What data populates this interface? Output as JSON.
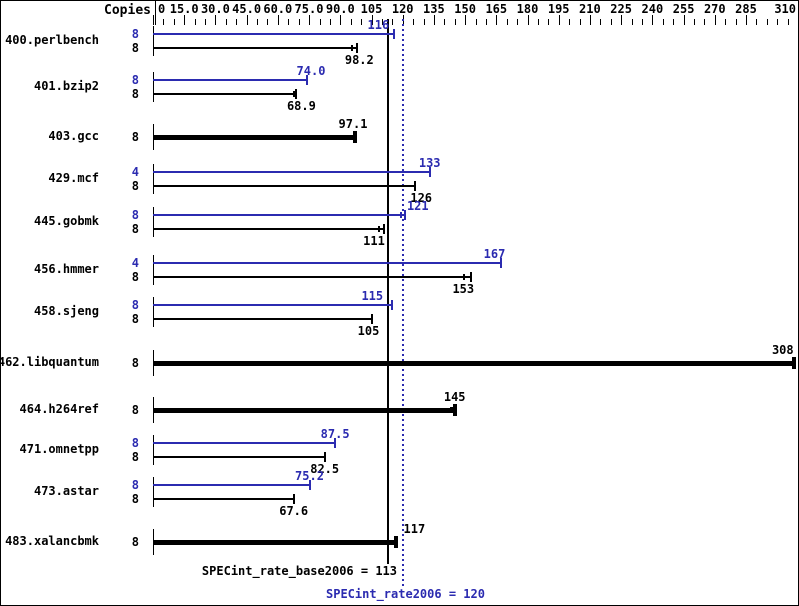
{
  "header": {
    "copies_label": "Copies"
  },
  "footer": {
    "base_result": "SPECint_rate_base2006 = 113",
    "peak_result": "SPECint_rate2006 = 120"
  },
  "chart_data": {
    "type": "bar",
    "orientation": "horizontal",
    "title": "",
    "xlabel": "",
    "ylabel": "Copies",
    "xlim": [
      0,
      310
    ],
    "grid": false,
    "legend": "none",
    "colors": {
      "peak": "#2b2bb0",
      "base": "#000000"
    },
    "axis": {
      "min": 0,
      "max": 310,
      "major_step": 15,
      "minor_step": 5,
      "majors_until": 285,
      "ticks": [
        {
          "v": 0,
          "label": "0"
        },
        {
          "v": 15,
          "label": "15.0"
        },
        {
          "v": 30,
          "label": "30.0"
        },
        {
          "v": 45,
          "label": "45.0"
        },
        {
          "v": 60,
          "label": "60.0"
        },
        {
          "v": 75,
          "label": "75.0"
        },
        {
          "v": 90,
          "label": "90.0"
        },
        {
          "v": 105,
          "label": "105"
        },
        {
          "v": 120,
          "label": "120"
        },
        {
          "v": 135,
          "label": "135"
        },
        {
          "v": 150,
          "label": "150"
        },
        {
          "v": 165,
          "label": "165"
        },
        {
          "v": 180,
          "label": "180"
        },
        {
          "v": 195,
          "label": "195"
        },
        {
          "v": 210,
          "label": "210"
        },
        {
          "v": 225,
          "label": "225"
        },
        {
          "v": 240,
          "label": "240"
        },
        {
          "v": 255,
          "label": "255"
        },
        {
          "v": 270,
          "label": "270"
        },
        {
          "v": 285,
          "label": "285"
        },
        {
          "v": 310,
          "label": "310"
        }
      ]
    },
    "reference_lines": [
      {
        "value": 113,
        "style": "solid",
        "color": "#000000",
        "label": "SPECint_rate_base2006 = 113"
      },
      {
        "value": 120,
        "style": "dotted",
        "color": "#2b2bb0",
        "label": "SPECint_rate2006 = 120"
      }
    ],
    "groups": [
      {
        "name": "400.perlbench",
        "bars": [
          {
            "kind": "peak",
            "copies": "8",
            "value": 116,
            "label": "116",
            "label_pos": "above",
            "label_dx": -16,
            "run_ticks": []
          },
          {
            "kind": "base",
            "copies": "8",
            "value": 98.2,
            "label": "98.2",
            "label_pos": "below",
            "label_dx": 2,
            "run_ticks": [
              95.6
            ]
          }
        ]
      },
      {
        "name": "401.bzip2",
        "bars": [
          {
            "kind": "peak",
            "copies": "8",
            "value": 74.0,
            "label": "74.0",
            "label_pos": "above",
            "label_dx": 4,
            "run_ticks": []
          },
          {
            "kind": "base",
            "copies": "8",
            "value": 68.9,
            "label": "68.9",
            "label_pos": "below",
            "label_dx": 5,
            "run_ticks": [
              67.8
            ]
          }
        ]
      },
      {
        "name": "403.gcc",
        "bars": [
          {
            "kind": "base-only",
            "copies": "8",
            "value": 97.1,
            "label": "97.1",
            "label_pos": "above",
            "label_dx": -2,
            "run_ticks": []
          }
        ]
      },
      {
        "name": "429.mcf",
        "bars": [
          {
            "kind": "peak",
            "copies": "4",
            "value": 133,
            "label": "133",
            "label_pos": "above",
            "label_dx": 0,
            "run_ticks": []
          },
          {
            "kind": "base",
            "copies": "8",
            "value": 126,
            "label": "126",
            "label_pos": "below",
            "label_dx": 6,
            "run_ticks": []
          }
        ]
      },
      {
        "name": "445.gobmk",
        "bars": [
          {
            "kind": "peak",
            "copies": "8",
            "value": 121,
            "label": "121",
            "label_pos": "above",
            "label_dx": 13,
            "run_ticks": [
              119.4
            ]
          },
          {
            "kind": "base",
            "copies": "8",
            "value": 111,
            "label": "111",
            "label_pos": "below",
            "label_dx": -10,
            "run_ticks": [
              108.6
            ]
          }
        ]
      },
      {
        "name": "456.hmmer",
        "bars": [
          {
            "kind": "peak",
            "copies": "4",
            "value": 167,
            "label": "167",
            "label_pos": "above",
            "label_dx": -6,
            "run_ticks": []
          },
          {
            "kind": "base",
            "copies": "8",
            "value": 153,
            "label": "153",
            "label_pos": "below",
            "label_dx": -8,
            "run_ticks": [
              149.5
            ]
          }
        ]
      },
      {
        "name": "458.sjeng",
        "bars": [
          {
            "kind": "peak",
            "copies": "8",
            "value": 115,
            "label": "115",
            "label_pos": "above",
            "label_dx": -20,
            "run_ticks": []
          },
          {
            "kind": "base",
            "copies": "8",
            "value": 105,
            "label": "105",
            "label_pos": "below",
            "label_dx": -3,
            "run_ticks": []
          }
        ]
      },
      {
        "name": "462.libquantum",
        "bars": [
          {
            "kind": "base-only",
            "copies": "8",
            "value": 308,
            "label": "308",
            "label_pos": "above",
            "label_dx": -11,
            "run_ticks": []
          }
        ]
      },
      {
        "name": "464.h264ref",
        "bars": [
          {
            "kind": "base-only",
            "copies": "8",
            "value": 145,
            "label": "145",
            "label_pos": "above",
            "label_dx": 0,
            "run_ticks": [
              143.0,
              144.0
            ]
          }
        ]
      },
      {
        "name": "471.omnetpp",
        "bars": [
          {
            "kind": "peak",
            "copies": "8",
            "value": 87.5,
            "label": "87.5",
            "label_pos": "above",
            "label_dx": 0,
            "run_ticks": []
          },
          {
            "kind": "base",
            "copies": "8",
            "value": 82.5,
            "label": "82.5",
            "label_pos": "below",
            "label_dx": 0,
            "run_ticks": []
          }
        ]
      },
      {
        "name": "473.astar",
        "bars": [
          {
            "kind": "peak",
            "copies": "8",
            "value": 75.2,
            "label": "75.2",
            "label_pos": "above",
            "label_dx": 0,
            "run_ticks": []
          },
          {
            "kind": "base",
            "copies": "8",
            "value": 67.6,
            "label": "67.6",
            "label_pos": "below",
            "label_dx": 0,
            "run_ticks": []
          }
        ]
      },
      {
        "name": "483.xalancbmk",
        "bars": [
          {
            "kind": "base-only",
            "copies": "8",
            "value": 117,
            "label": "117",
            "label_pos": "above",
            "label_dx": 18,
            "run_ticks": []
          }
        ]
      }
    ]
  }
}
